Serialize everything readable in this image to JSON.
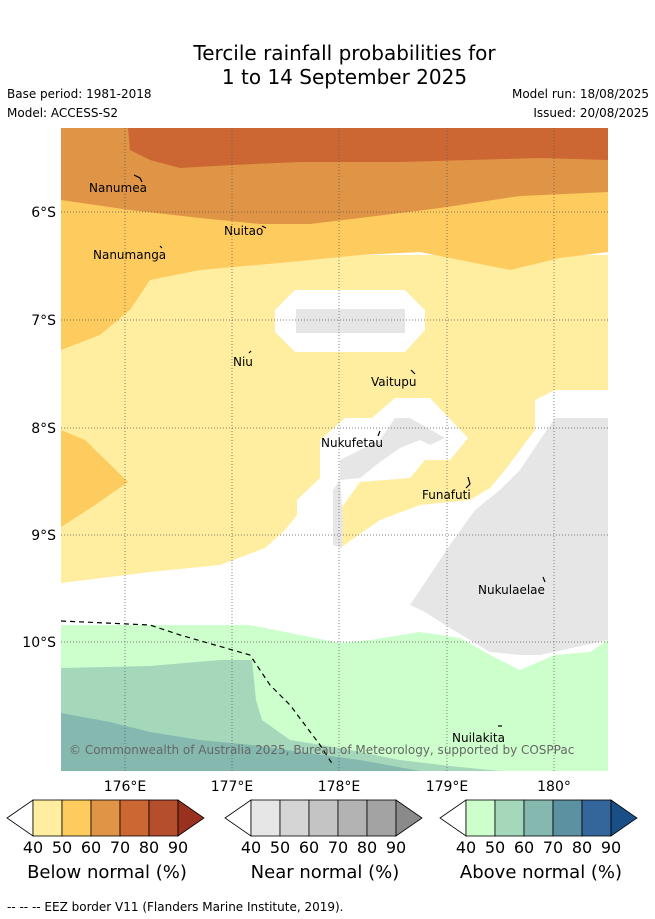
{
  "title_line1": "Tercile rainfall probabilities for",
  "title_line2": "1 to 14 September 2025",
  "base_period": "Base period: 1981-2018",
  "model": "Model: ACCESS-S2",
  "model_run": "Model run: 18/08/2025",
  "issued": "Issued: 20/08/2025",
  "lat_labels": [
    "6°S",
    "7°S",
    "8°S",
    "9°S",
    "10°S"
  ],
  "lon_labels": [
    "176°E",
    "177°E",
    "178°E",
    "179°E",
    "180°"
  ],
  "islands": [
    "Nanumea",
    "Nuitao",
    "Nanumanga",
    "Niu",
    "Vaitupu",
    "Nukufetau",
    "Funafuti",
    "Nukulaelae",
    "Nuilakita"
  ],
  "copyright": "© Commonwealth of Australia 2025, Bureau of Meteorology, supported by COSPPac",
  "colorbars": {
    "below": {
      "title": "Below normal (%)",
      "ticks": [
        "40",
        "50",
        "60",
        "70",
        "80",
        "90"
      ],
      "colors": [
        "#ffffff",
        "#ffeda0",
        "#fecb5f",
        "#e09446",
        "#cc6633",
        "#b44e2c",
        "#99311e"
      ]
    },
    "near": {
      "title": "Near normal (%)",
      "ticks": [
        "40",
        "50",
        "60",
        "70",
        "80",
        "90"
      ],
      "colors": [
        "#ffffff",
        "#e6e6e6",
        "#d5d5d5",
        "#c4c4c4",
        "#b3b3b3",
        "#a3a3a3",
        "#8a8a8a"
      ]
    },
    "above": {
      "title": "Above normal (%)",
      "ticks": [
        "40",
        "50",
        "60",
        "70",
        "80",
        "90"
      ],
      "colors": [
        "#ffffff",
        "#ccffcc",
        "#a5d8bb",
        "#85b9b0",
        "#5b91a1",
        "#34669b",
        "#1a4e87"
      ]
    }
  },
  "footer": "--  --  -- EEZ border V11 (Flanders Marine Institute, 2019)."
}
